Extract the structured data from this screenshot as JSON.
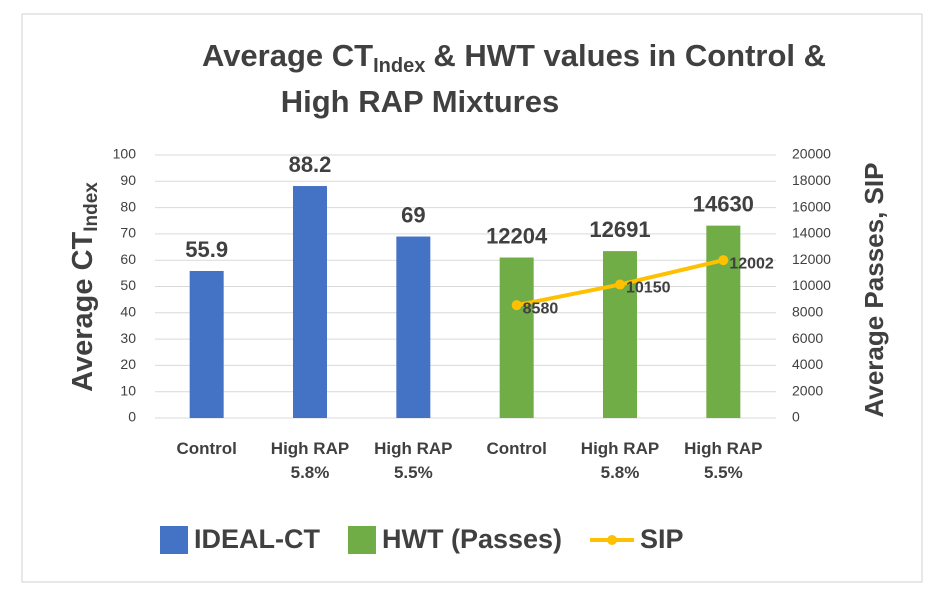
{
  "chart_data": {
    "type": "bar",
    "title": [
      "Average CT",
      "Index",
      "& HWT values in Control &",
      "High RAP Mixtures"
    ],
    "y_label": [
      "Average CT",
      "Index"
    ],
    "y2_label": "Average Passes, SIP",
    "categories": [
      "Control",
      "High RAP 5.8%",
      "High RAP 5.5%",
      "Control",
      "High RAP 5.8%",
      "High RAP 5.5%"
    ],
    "series": [
      {
        "name": "IDEAL-CT",
        "type": "bar",
        "color": "#4472c4",
        "values": [
          55.9,
          88.2,
          69,
          null,
          null,
          null
        ]
      },
      {
        "name": "HWT (Passes)",
        "type": "bar",
        "axis": "y2",
        "color": "#70ad47",
        "values": [
          null,
          null,
          null,
          12204,
          12691,
          14630
        ]
      },
      {
        "name": "SIP",
        "type": "line",
        "axis": "y2",
        "color": "#ffc000",
        "values": [
          null,
          null,
          null,
          8580,
          10150,
          12002
        ]
      }
    ],
    "ylim": [
      0,
      100
    ],
    "yticks": [
      0,
      10,
      20,
      30,
      40,
      50,
      60,
      70,
      80,
      90,
      100
    ],
    "y2lim": [
      0,
      20000
    ],
    "y2ticks": [
      0,
      2000,
      4000,
      6000,
      8000,
      10000,
      12000,
      14000,
      16000,
      18000,
      20000
    ],
    "grid": true,
    "legend": "bottom"
  }
}
